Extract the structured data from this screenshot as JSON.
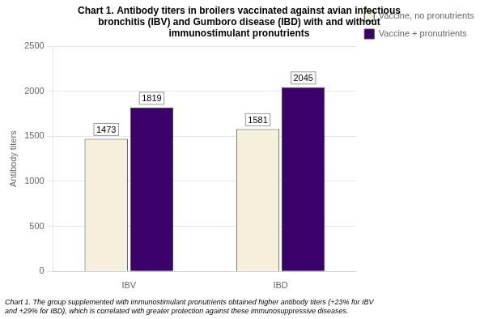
{
  "chart_data": {
    "type": "bar",
    "title": [
      "Chart 1. Antibody titers in broilers vaccinated against avian infectious",
      "bronchitis (IBV) and Gumboro disease (IBD) with and without",
      "immunostimulant pronutrients"
    ],
    "annotations": [
      "Chart 1. The group supplemented with immunostimulant pronutrients obtained higher antibody titers (+23% for IBV",
      "and +29% for IBD), which is correlated with greater protection against these immunosuppressive diseases."
    ],
    "categories": [
      "IBV",
      "IBD"
    ],
    "series": [
      {
        "name": "Vaccine, no pronutrients",
        "color": "#F5F0DC",
        "values": [
          1473,
          1581
        ]
      },
      {
        "name": "Vaccine + pronutrients",
        "color": "#3B006A",
        "values": [
          1819,
          2045
        ]
      }
    ],
    "ylabel": "Antibody titers",
    "ylim": [
      0,
      2500
    ],
    "yticks": [
      0,
      500,
      1000,
      1500,
      2000,
      2500
    ],
    "grid": true,
    "legend": "right",
    "data_labels": true
  }
}
